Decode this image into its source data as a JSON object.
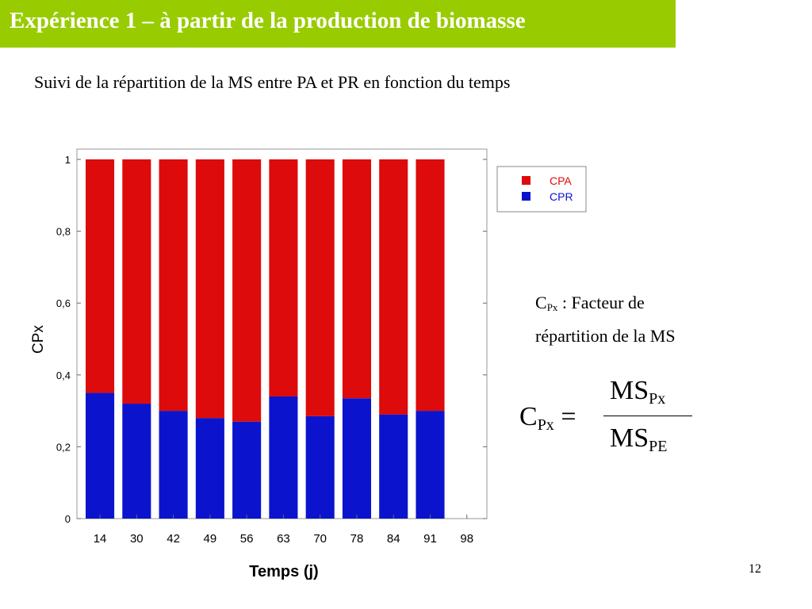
{
  "slide": {
    "title": "Expérience 1 – à partir de la production de biomasse",
    "subtitle": "Suivi de la répartition de la MS entre PA et PR en fonction du temps",
    "page_number": "12"
  },
  "definition": {
    "c": "C",
    "sub": "Px",
    "text_line1": " : Facteur de",
    "text_line2": "répartition de la MS"
  },
  "formula": {
    "lhs": "C",
    "lhs_sub": "Px",
    "equals": " =",
    "num": "MS",
    "num_sub": "Px",
    "den": "MS",
    "den_sub": "PE"
  },
  "chart_data": {
    "type": "bar",
    "stacked": true,
    "categories": [
      "14",
      "30",
      "42",
      "49",
      "56",
      "63",
      "70",
      "78",
      "84",
      "91",
      "98"
    ],
    "series": [
      {
        "name": "CPR",
        "color": "#0b14cc",
        "values": [
          0.35,
          0.32,
          0.3,
          0.28,
          0.27,
          0.34,
          0.285,
          0.335,
          0.29,
          0.3,
          null
        ]
      },
      {
        "name": "CPA",
        "color": "#dd0b0b",
        "values": [
          0.65,
          0.68,
          0.7,
          0.72,
          0.73,
          0.66,
          0.715,
          0.665,
          0.71,
          0.7,
          null
        ]
      }
    ],
    "legend_order": [
      "CPA",
      "CPR"
    ],
    "legend_position": "top-right",
    "xlabel": "Temps (j)",
    "ylabel": "CPx",
    "ylim": [
      0,
      1
    ],
    "yticks": [
      0,
      0.2,
      0.4,
      0.6,
      0.8,
      1
    ],
    "ytick_labels": [
      "0",
      "0,2",
      "0,4",
      "0,6",
      "0,8",
      "1"
    ],
    "grid": false
  }
}
